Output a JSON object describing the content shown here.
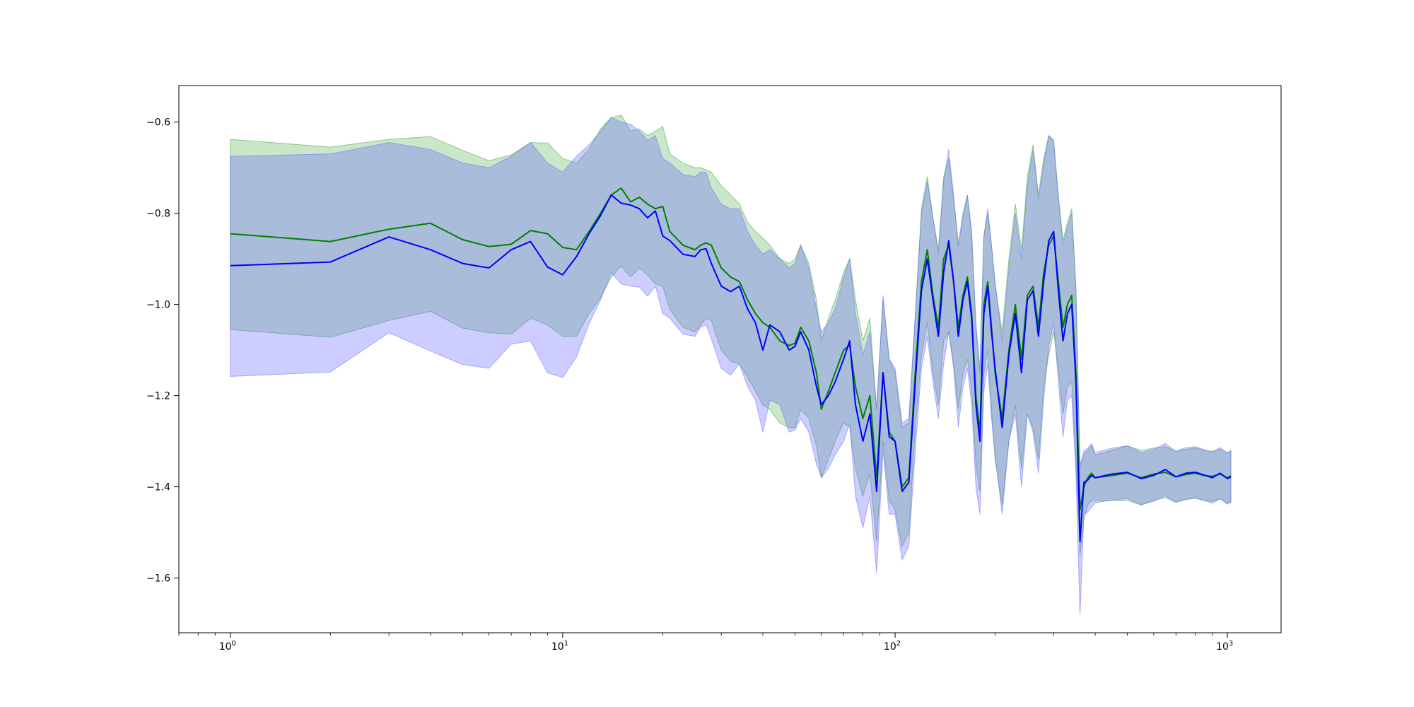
{
  "chart_data": {
    "type": "line",
    "x_scale": "log",
    "xlim": [
      0.7,
      1450
    ],
    "ylim": [
      -1.72,
      -0.52
    ],
    "grid": false,
    "x_tick_labels": [
      {
        "value": 1,
        "base": "10",
        "exp": "0"
      },
      {
        "value": 10,
        "base": "10",
        "exp": "1"
      },
      {
        "value": 100,
        "base": "10",
        "exp": "2"
      },
      {
        "value": 1000,
        "base": "10",
        "exp": "3"
      }
    ],
    "y_ticks": [
      -0.6,
      -0.8,
      -1.0,
      -1.2,
      -1.4,
      -1.6
    ],
    "y_tick_labels": [
      "−0.6",
      "−0.8",
      "−1.0",
      "−1.2",
      "−1.4",
      "−1.6"
    ],
    "series": [
      {
        "color": "#008000",
        "band_color": "#2ca02c",
        "band_opacity": 0.25,
        "x": [
          1,
          2,
          3,
          4,
          5,
          6,
          7,
          8,
          9,
          10,
          11,
          12,
          13,
          14,
          15,
          16,
          17,
          18,
          19,
          20,
          21,
          23,
          25,
          26,
          27,
          28,
          30,
          32,
          34,
          36,
          38,
          40,
          42,
          45,
          48,
          50,
          52,
          55,
          58,
          60,
          63,
          66,
          70,
          73,
          76,
          80,
          84,
          88,
          92,
          96,
          100,
          105,
          110,
          115,
          120,
          125,
          130,
          135,
          140,
          145,
          150,
          155,
          160,
          165,
          170,
          175,
          180,
          185,
          190,
          195,
          200,
          210,
          220,
          230,
          240,
          250,
          260,
          270,
          280,
          290,
          300,
          310,
          320,
          330,
          340,
          350,
          360,
          370,
          380,
          390,
          400,
          450,
          500,
          550,
          600,
          650,
          700,
          750,
          800,
          850,
          900,
          950,
          1000,
          1024
        ],
        "y": [
          -0.845,
          -0.862,
          -0.835,
          -0.822,
          -0.858,
          -0.873,
          -0.868,
          -0.838,
          -0.845,
          -0.875,
          -0.88,
          -0.84,
          -0.8,
          -0.76,
          -0.745,
          -0.775,
          -0.765,
          -0.78,
          -0.79,
          -0.785,
          -0.84,
          -0.87,
          -0.88,
          -0.87,
          -0.865,
          -0.87,
          -0.92,
          -0.94,
          -0.95,
          -0.99,
          -1.02,
          -1.04,
          -1.05,
          -1.08,
          -1.09,
          -1.085,
          -1.05,
          -1.08,
          -1.15,
          -1.23,
          -1.19,
          -1.15,
          -1.1,
          -1.09,
          -1.18,
          -1.25,
          -1.2,
          -1.38,
          -1.15,
          -1.28,
          -1.3,
          -1.4,
          -1.38,
          -1.15,
          -0.95,
          -0.88,
          -0.98,
          -1.05,
          -0.9,
          -0.87,
          -0.95,
          -1.05,
          -0.98,
          -0.94,
          -1.02,
          -1.2,
          -1.28,
          -1.0,
          -0.95,
          -1.05,
          -1.15,
          -1.25,
          -1.1,
          -1.0,
          -1.12,
          -0.98,
          -0.96,
          -1.05,
          -0.93,
          -0.87,
          -0.85,
          -0.95,
          -1.05,
          -1.0,
          -0.98,
          -1.15,
          -1.45,
          -1.4,
          -1.38,
          -1.37,
          -1.38,
          -1.375,
          -1.37,
          -1.38,
          -1.372,
          -1.368,
          -1.378,
          -1.373,
          -1.37,
          -1.375,
          -1.377,
          -1.372,
          -1.38,
          -1.376
        ],
        "y_upper": [
          -0.638,
          -0.655,
          -0.638,
          -0.632,
          -0.662,
          -0.685,
          -0.672,
          -0.645,
          -0.646,
          -0.68,
          -0.69,
          -0.66,
          -0.615,
          -0.59,
          -0.585,
          -0.62,
          -0.615,
          -0.63,
          -0.62,
          -0.61,
          -0.67,
          -0.69,
          -0.7,
          -0.7,
          -0.705,
          -0.71,
          -0.74,
          -0.76,
          -0.78,
          -0.82,
          -0.84,
          -0.855,
          -0.87,
          -0.9,
          -0.91,
          -0.9,
          -0.87,
          -0.91,
          -0.99,
          -1.08,
          -1.03,
          -0.99,
          -0.93,
          -0.9,
          -0.99,
          -1.08,
          -1.03,
          -1.23,
          -0.99,
          -1.12,
          -1.15,
          -1.27,
          -1.26,
          -1.03,
          -0.79,
          -0.72,
          -0.81,
          -0.88,
          -0.72,
          -0.68,
          -0.77,
          -0.87,
          -0.81,
          -0.76,
          -0.85,
          -1.05,
          -1.15,
          -0.85,
          -0.8,
          -0.87,
          -0.96,
          -1.06,
          -0.9,
          -0.78,
          -0.88,
          -0.72,
          -0.65,
          -0.76,
          -0.68,
          -0.63,
          -0.64,
          -0.76,
          -0.86,
          -0.82,
          -0.79,
          -0.96,
          -1.35,
          -1.33,
          -1.32,
          -1.31,
          -1.33,
          -1.32,
          -1.31,
          -1.32,
          -1.315,
          -1.312,
          -1.322,
          -1.318,
          -1.315,
          -1.32,
          -1.322,
          -1.318,
          -1.325,
          -1.32
        ],
        "y_lower": [
          -1.055,
          -1.072,
          -1.035,
          -1.015,
          -1.052,
          -1.062,
          -1.065,
          -1.03,
          -1.045,
          -1.07,
          -1.07,
          -1.02,
          -0.985,
          -0.94,
          -0.915,
          -0.94,
          -0.92,
          -0.935,
          -0.955,
          -0.96,
          -1.01,
          -1.05,
          -1.06,
          -1.045,
          -1.03,
          -1.035,
          -1.1,
          -1.125,
          -1.13,
          -1.16,
          -1.19,
          -1.22,
          -1.23,
          -1.26,
          -1.27,
          -1.27,
          -1.23,
          -1.25,
          -1.31,
          -1.38,
          -1.34,
          -1.3,
          -1.26,
          -1.27,
          -1.36,
          -1.42,
          -1.37,
          -1.52,
          -1.3,
          -1.43,
          -1.45,
          -1.53,
          -1.5,
          -1.27,
          -1.11,
          -1.04,
          -1.15,
          -1.22,
          -1.08,
          -1.06,
          -1.13,
          -1.23,
          -1.15,
          -1.12,
          -1.19,
          -1.35,
          -1.41,
          -1.15,
          -1.1,
          -1.23,
          -1.34,
          -1.44,
          -1.3,
          -1.22,
          -1.36,
          -1.24,
          -1.27,
          -1.34,
          -1.18,
          -1.11,
          -1.06,
          -1.14,
          -1.24,
          -1.18,
          -1.17,
          -1.34,
          -1.55,
          -1.47,
          -1.44,
          -1.43,
          -1.43,
          -1.43,
          -1.43,
          -1.44,
          -1.429,
          -1.424,
          -1.434,
          -1.428,
          -1.425,
          -1.43,
          -1.432,
          -1.426,
          -1.435,
          -1.432
        ]
      },
      {
        "color": "#0000ff",
        "band_color": "#6666ff",
        "band_opacity": 0.33,
        "x": [
          1,
          2,
          3,
          4,
          5,
          6,
          7,
          8,
          9,
          10,
          11,
          12,
          13,
          14,
          15,
          16,
          17,
          18,
          19,
          20,
          21,
          23,
          25,
          26,
          27,
          28,
          30,
          32,
          34,
          36,
          38,
          40,
          42,
          45,
          48,
          50,
          52,
          55,
          58,
          60,
          63,
          66,
          70,
          73,
          76,
          80,
          84,
          88,
          92,
          96,
          100,
          105,
          110,
          115,
          120,
          125,
          130,
          135,
          140,
          145,
          150,
          155,
          160,
          165,
          170,
          175,
          180,
          185,
          190,
          195,
          200,
          210,
          220,
          230,
          240,
          250,
          260,
          270,
          280,
          290,
          300,
          310,
          320,
          330,
          340,
          350,
          360,
          370,
          380,
          390,
          400,
          450,
          500,
          550,
          600,
          650,
          700,
          750,
          800,
          850,
          900,
          950,
          1000,
          1024
        ],
        "y": [
          -0.915,
          -0.907,
          -0.852,
          -0.88,
          -0.91,
          -0.92,
          -0.88,
          -0.862,
          -0.918,
          -0.935,
          -0.895,
          -0.845,
          -0.805,
          -0.76,
          -0.778,
          -0.782,
          -0.79,
          -0.81,
          -0.795,
          -0.85,
          -0.86,
          -0.89,
          -0.895,
          -0.88,
          -0.878,
          -0.91,
          -0.96,
          -0.972,
          -0.96,
          -1.01,
          -1.04,
          -1.1,
          -1.045,
          -1.06,
          -1.1,
          -1.092,
          -1.06,
          -1.1,
          -1.18,
          -1.22,
          -1.2,
          -1.17,
          -1.12,
          -1.08,
          -1.22,
          -1.3,
          -1.24,
          -1.41,
          -1.15,
          -1.29,
          -1.3,
          -1.41,
          -1.39,
          -1.17,
          -0.97,
          -0.9,
          -0.99,
          -1.07,
          -0.93,
          -0.86,
          -0.95,
          -1.07,
          -0.99,
          -0.95,
          -1.03,
          -1.22,
          -1.3,
          -1.02,
          -0.96,
          -1.06,
          -1.14,
          -1.27,
          -1.11,
          -1.02,
          -1.15,
          -0.99,
          -0.97,
          -1.07,
          -0.95,
          -0.86,
          -0.84,
          -0.97,
          -1.08,
          -1.02,
          -1.0,
          -1.17,
          -1.52,
          -1.39,
          -1.385,
          -1.375,
          -1.38,
          -1.372,
          -1.368,
          -1.382,
          -1.375,
          -1.362,
          -1.378,
          -1.37,
          -1.368,
          -1.374,
          -1.38,
          -1.37,
          -1.382,
          -1.378
        ],
        "y_upper": [
          -0.675,
          -0.67,
          -0.645,
          -0.66,
          -0.69,
          -0.7,
          -0.675,
          -0.645,
          -0.69,
          -0.71,
          -0.675,
          -0.65,
          -0.62,
          -0.59,
          -0.6,
          -0.605,
          -0.62,
          -0.64,
          -0.63,
          -0.68,
          -0.69,
          -0.715,
          -0.72,
          -0.71,
          -0.71,
          -0.745,
          -0.78,
          -0.79,
          -0.79,
          -0.84,
          -0.87,
          -0.89,
          -0.88,
          -0.9,
          -0.92,
          -0.91,
          -0.87,
          -0.92,
          -1.01,
          -1.06,
          -1.04,
          -1.01,
          -0.94,
          -0.9,
          -1.02,
          -1.11,
          -1.06,
          -1.23,
          -0.98,
          -1.12,
          -1.14,
          -1.26,
          -1.25,
          -1.02,
          -0.8,
          -0.73,
          -0.81,
          -0.89,
          -0.73,
          -0.66,
          -0.76,
          -0.87,
          -0.8,
          -0.76,
          -0.84,
          -1.04,
          -1.14,
          -0.85,
          -0.79,
          -0.87,
          -0.95,
          -1.08,
          -0.92,
          -0.8,
          -0.9,
          -0.74,
          -0.66,
          -0.77,
          -0.69,
          -0.63,
          -0.64,
          -0.77,
          -0.87,
          -0.83,
          -0.8,
          -0.97,
          -1.36,
          -1.32,
          -1.315,
          -1.305,
          -1.325,
          -1.315,
          -1.31,
          -1.325,
          -1.318,
          -1.305,
          -1.322,
          -1.314,
          -1.312,
          -1.318,
          -1.324,
          -1.314,
          -1.326,
          -1.322
        ],
        "y_lower": [
          -1.158,
          -1.148,
          -1.062,
          -1.102,
          -1.132,
          -1.14,
          -1.087,
          -1.08,
          -1.15,
          -1.16,
          -1.115,
          -1.042,
          -0.99,
          -0.93,
          -0.955,
          -0.96,
          -0.962,
          -0.982,
          -0.96,
          -1.02,
          -1.03,
          -1.065,
          -1.07,
          -1.05,
          -1.045,
          -1.075,
          -1.14,
          -1.155,
          -1.13,
          -1.18,
          -1.21,
          -1.28,
          -1.21,
          -1.22,
          -1.28,
          -1.275,
          -1.25,
          -1.28,
          -1.35,
          -1.38,
          -1.36,
          -1.33,
          -1.3,
          -1.26,
          -1.42,
          -1.49,
          -1.42,
          -1.59,
          -1.32,
          -1.46,
          -1.46,
          -1.56,
          -1.53,
          -1.32,
          -1.14,
          -1.07,
          -1.17,
          -1.25,
          -1.13,
          -1.06,
          -1.14,
          -1.27,
          -1.18,
          -1.14,
          -1.22,
          -1.4,
          -1.46,
          -1.19,
          -1.13,
          -1.25,
          -1.33,
          -1.46,
          -1.3,
          -1.24,
          -1.4,
          -1.24,
          -1.28,
          -1.37,
          -1.21,
          -1.09,
          -1.04,
          -1.17,
          -1.29,
          -1.21,
          -1.2,
          -1.37,
          -1.68,
          -1.46,
          -1.455,
          -1.445,
          -1.435,
          -1.429,
          -1.426,
          -1.439,
          -1.432,
          -1.419,
          -1.434,
          -1.426,
          -1.424,
          -1.43,
          -1.436,
          -1.426,
          -1.438,
          -1.434
        ]
      }
    ]
  }
}
